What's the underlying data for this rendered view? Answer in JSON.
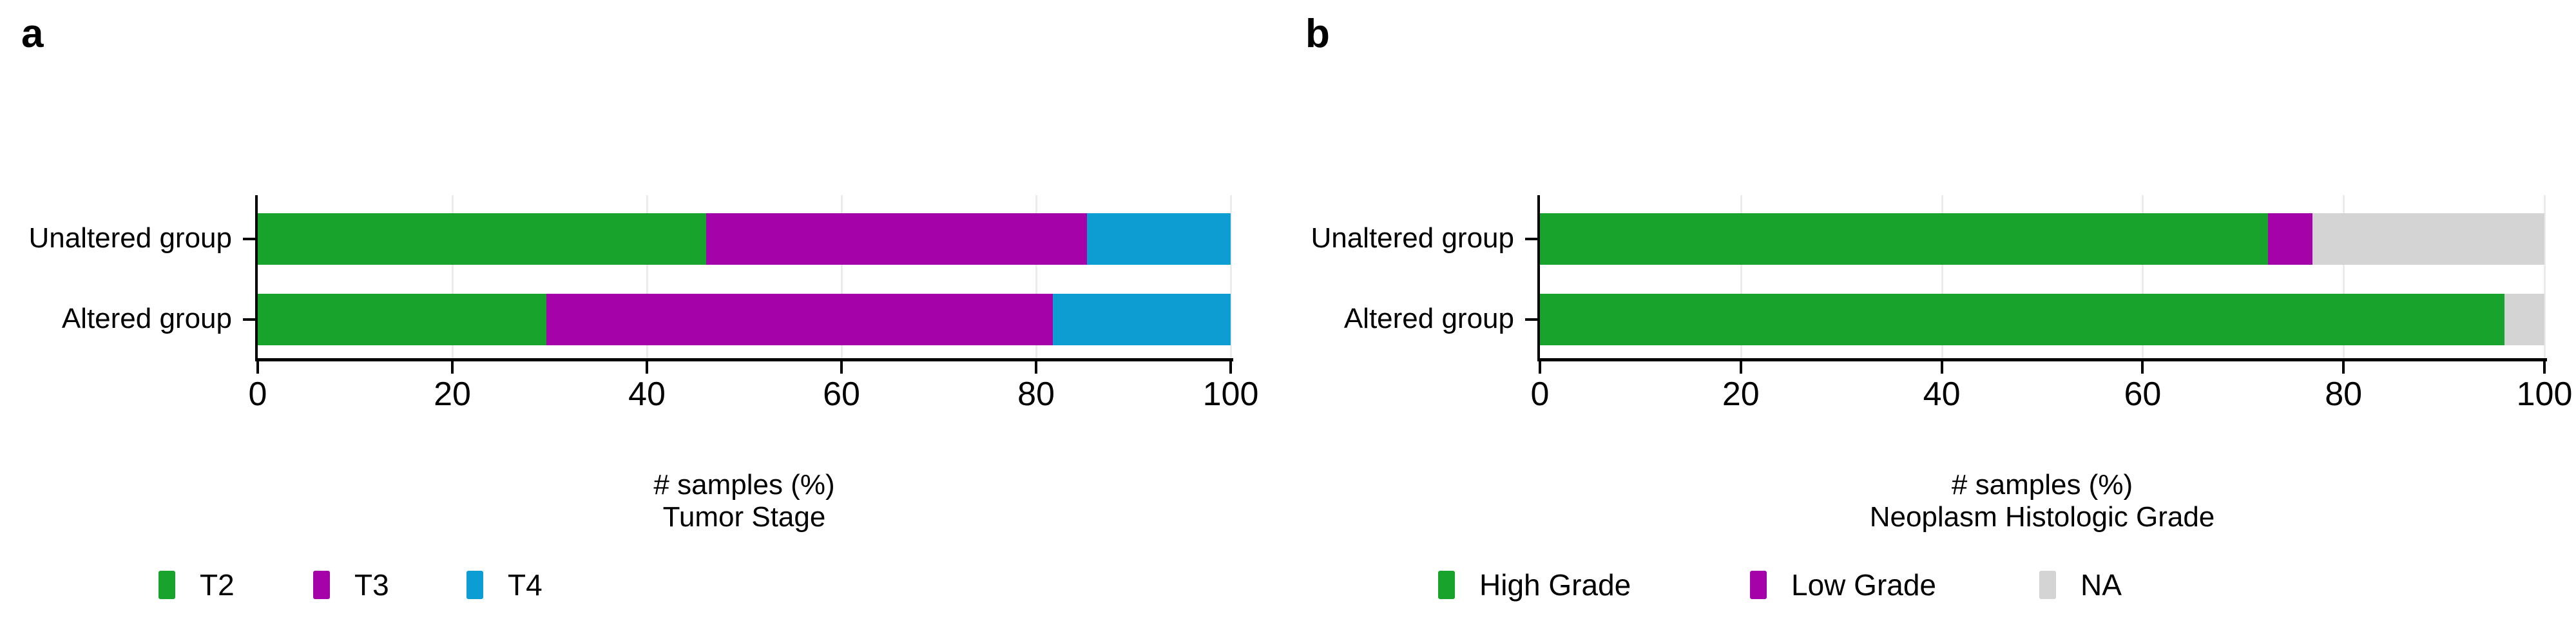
{
  "figure": {
    "background": "#ffffff",
    "text_color": "#000000",
    "gridline_color": "#ececec"
  },
  "chart_data": [
    {
      "type": "bar",
      "orientation": "horizontal",
      "stacked": true,
      "panel_label": "a",
      "categories": [
        "Unaltered group",
        "Altered group"
      ],
      "series": [
        {
          "name": "T2",
          "color": "#18a32c",
          "values": [
            46.1,
            29.7
          ]
        },
        {
          "name": "T3",
          "color": "#a403aa",
          "values": [
            39.1,
            52.0
          ]
        },
        {
          "name": "T4",
          "color": "#0c9ed2",
          "values": [
            14.8,
            18.3
          ]
        }
      ],
      "xlabel_line1": "# samples (%)",
      "xlabel_line2": "Tumor Stage",
      "x_ticks": [
        "0",
        "20",
        "40",
        "60",
        "80",
        "100"
      ],
      "xlim": [
        0,
        100
      ],
      "grid": "vertical-light",
      "legend_position": "bottom-left"
    },
    {
      "type": "bar",
      "orientation": "horizontal",
      "stacked": true,
      "panel_label": "b",
      "categories": [
        "Unaltered group",
        "Altered group"
      ],
      "series": [
        {
          "name": "High Grade",
          "color": "#18a32c",
          "values": [
            72.5,
            96.0
          ]
        },
        {
          "name": "Low Grade",
          "color": "#a403aa",
          "values": [
            4.4,
            0
          ]
        },
        {
          "name": "NA",
          "color": "#d4d4d4",
          "values": [
            23.1,
            4.0
          ]
        }
      ],
      "xlabel_line1": "# samples (%)",
      "xlabel_line2": "Neoplasm Histologic Grade",
      "x_ticks": [
        "0",
        "20",
        "40",
        "60",
        "80",
        "100"
      ],
      "xlim": [
        0,
        100
      ],
      "grid": "vertical-light",
      "legend_position": "bottom-left"
    }
  ]
}
